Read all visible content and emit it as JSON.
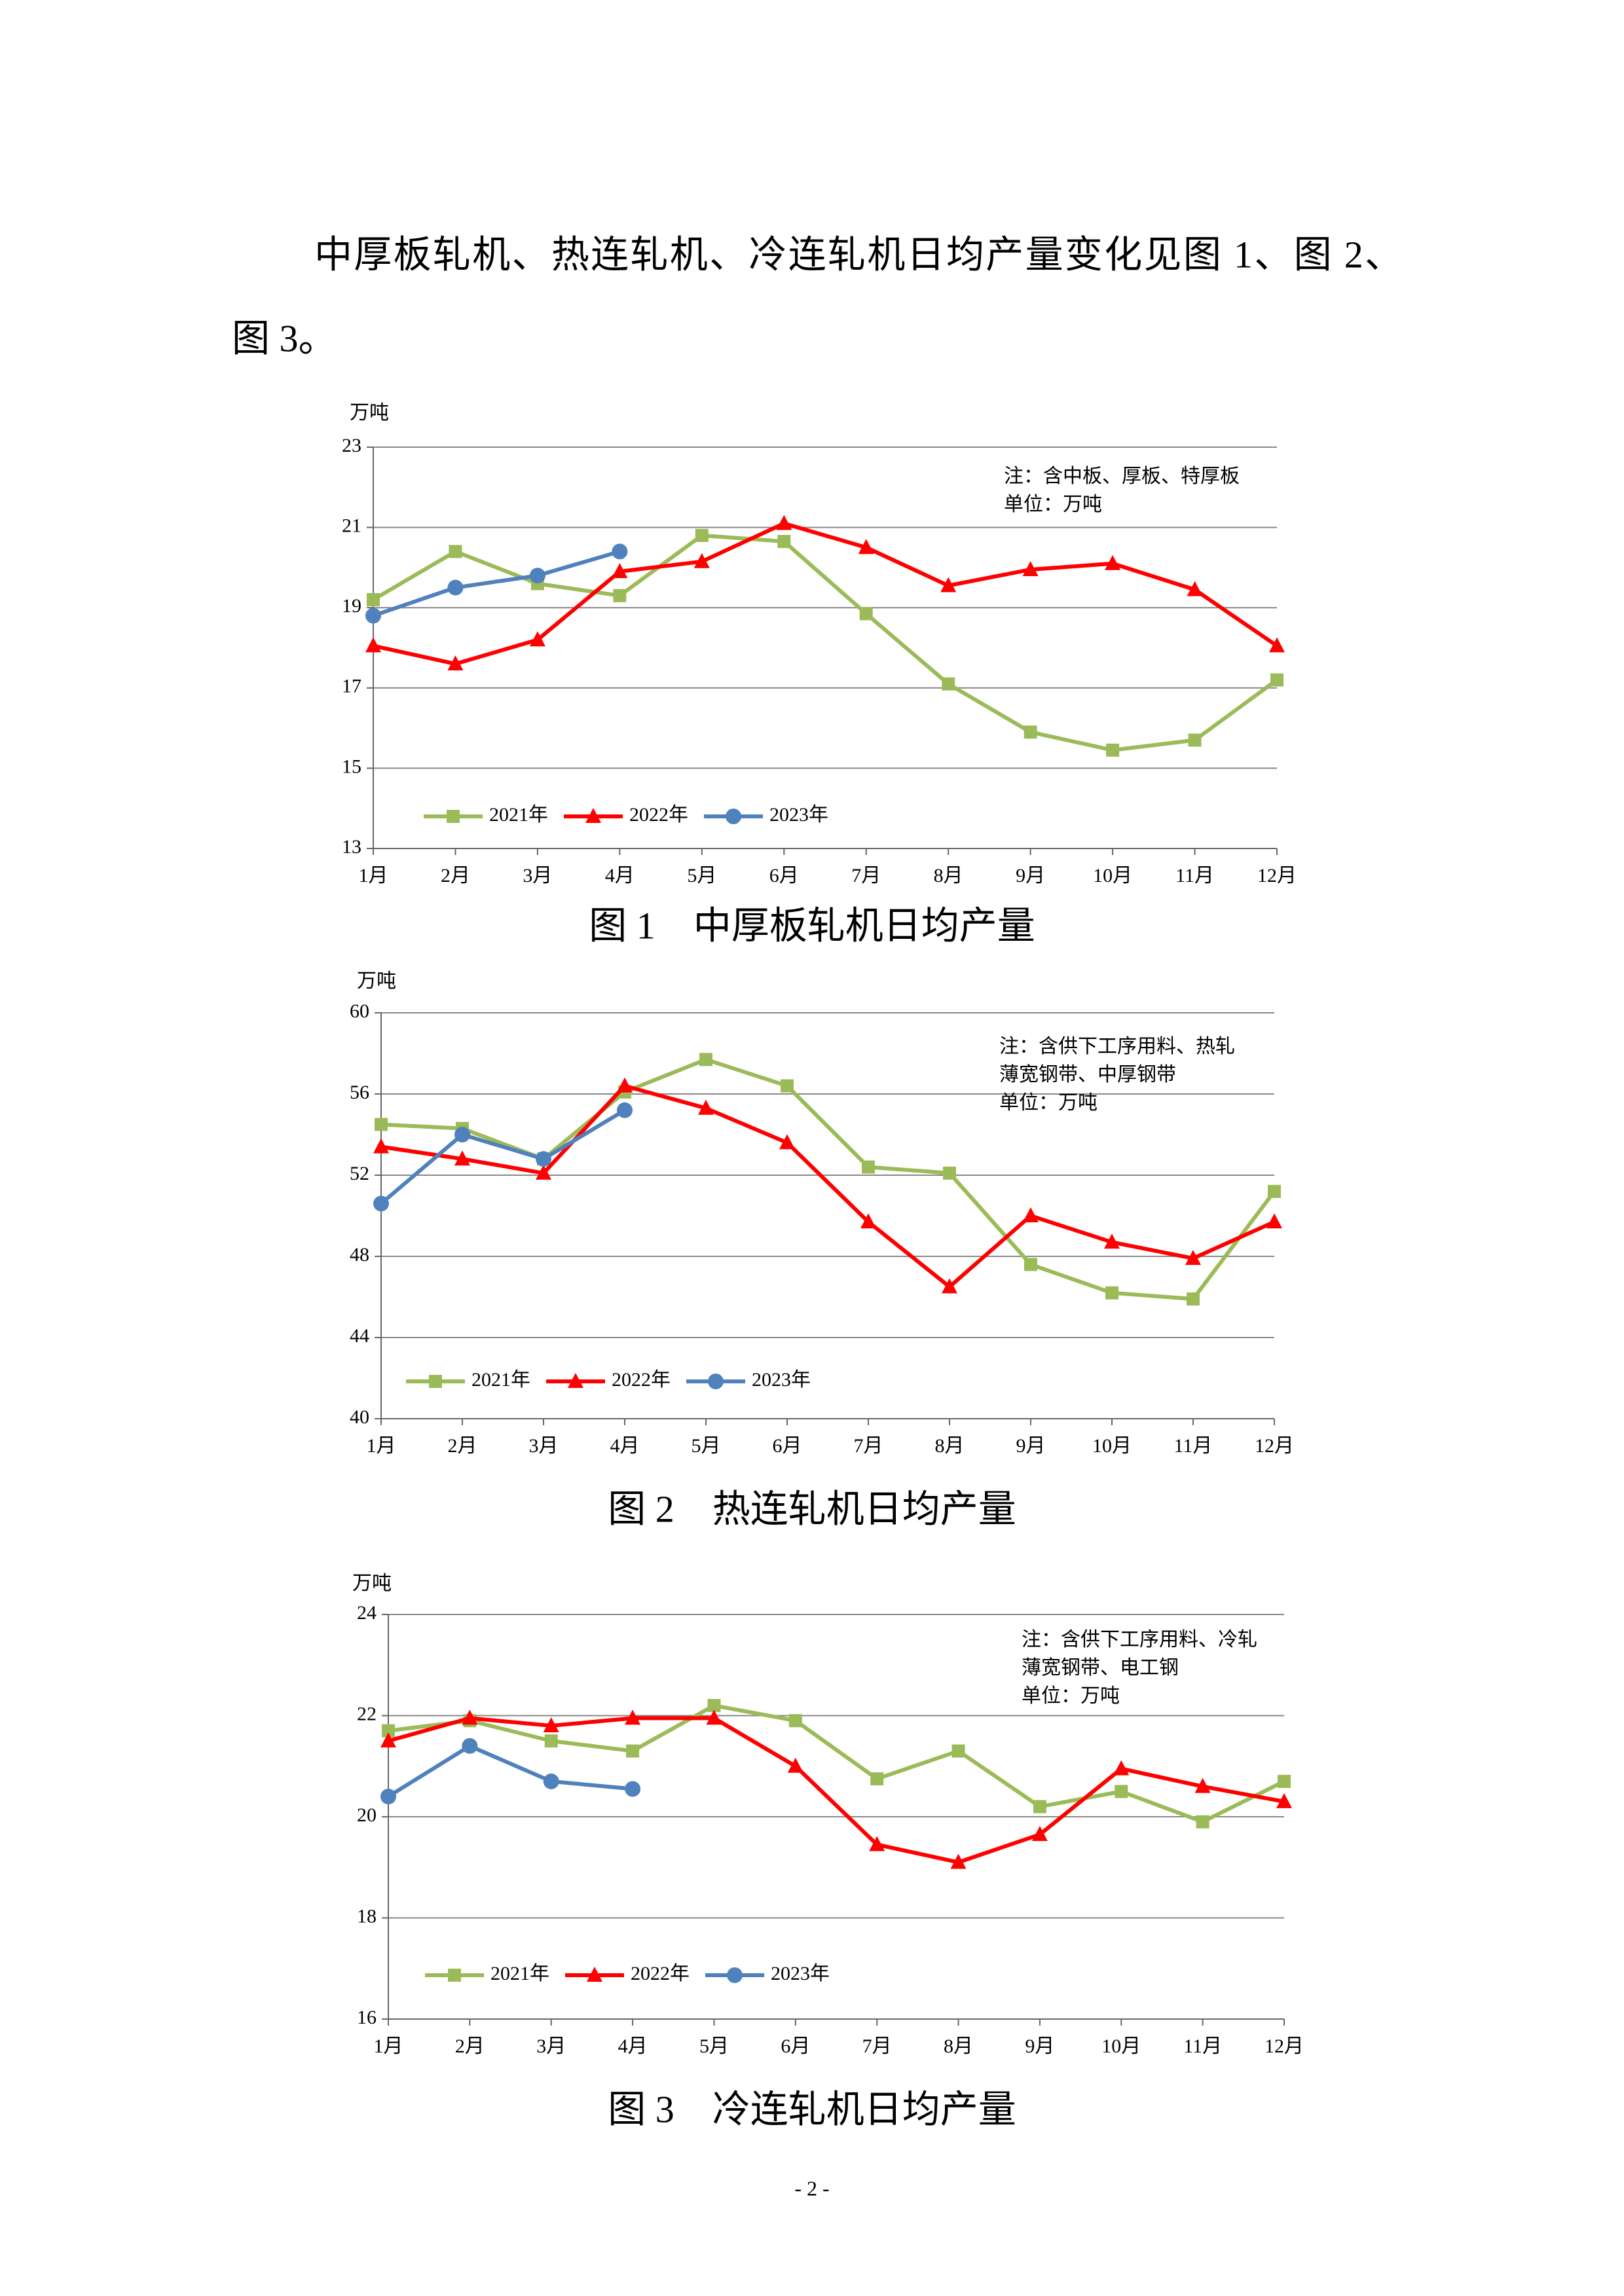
{
  "paragraph": {
    "lines": [
      "中厚板轧机、热连轧机、冷连轧机日均产量变化见图 1、图 2、",
      "图 3。"
    ]
  },
  "chart_data": [
    {
      "type": "line",
      "caption": "图 1　中厚板轧机日均产量",
      "unit_label": "万吨",
      "notes": [
        "注：含中板、厚板、特厚板",
        "单位：万吨"
      ],
      "categories": [
        "1月",
        "2月",
        "3月",
        "4月",
        "5月",
        "6月",
        "7月",
        "8月",
        "9月",
        "10月",
        "11月",
        "12月"
      ],
      "ylim": [
        13,
        23
      ],
      "yticks": [
        13,
        15,
        17,
        19,
        21,
        23
      ],
      "grid": true,
      "series": [
        {
          "name": "2021年",
          "color": "#9bbb59",
          "marker": "square",
          "values": [
            19.2,
            20.4,
            19.6,
            19.3,
            20.8,
            20.65,
            18.85,
            17.1,
            15.9,
            15.45,
            15.7,
            17.2
          ]
        },
        {
          "name": "2022年",
          "color": "#ff0000",
          "marker": "triangle",
          "values": [
            18.05,
            17.6,
            18.2,
            19.9,
            20.15,
            21.1,
            20.5,
            19.55,
            19.95,
            20.1,
            19.45,
            18.05
          ]
        },
        {
          "name": "2023年",
          "color": "#4f81bd",
          "marker": "circle",
          "values": [
            18.8,
            19.5,
            19.8,
            20.4,
            null,
            null,
            null,
            null,
            null,
            null,
            null,
            null
          ]
        }
      ]
    },
    {
      "type": "line",
      "caption": "图 2　热连轧机日均产量",
      "unit_label": "万吨",
      "notes": [
        "注：含供下工序用料、热轧",
        "薄宽钢带、中厚钢带",
        "单位：万吨"
      ],
      "categories": [
        "1月",
        "2月",
        "3月",
        "4月",
        "5月",
        "6月",
        "7月",
        "8月",
        "9月",
        "10月",
        "11月",
        "12月"
      ],
      "ylim": [
        40,
        60
      ],
      "yticks": [
        40,
        44,
        48,
        52,
        56,
        60
      ],
      "grid": true,
      "series": [
        {
          "name": "2021年",
          "color": "#9bbb59",
          "marker": "square",
          "values": [
            54.5,
            54.3,
            52.8,
            56.1,
            57.7,
            56.4,
            52.4,
            52.1,
            47.6,
            46.2,
            45.9,
            51.2
          ]
        },
        {
          "name": "2022年",
          "color": "#ff0000",
          "marker": "triangle",
          "values": [
            53.4,
            52.8,
            52.1,
            56.4,
            55.3,
            53.6,
            49.7,
            46.5,
            50.0,
            48.7,
            47.9,
            49.7
          ]
        },
        {
          "name": "2023年",
          "color": "#4f81bd",
          "marker": "circle",
          "values": [
            50.6,
            54.0,
            52.8,
            55.2,
            null,
            null,
            null,
            null,
            null,
            null,
            null,
            null
          ]
        }
      ]
    },
    {
      "type": "line",
      "caption": "图 3　冷连轧机日均产量",
      "unit_label": "万吨",
      "notes": [
        "注：含供下工序用料、冷轧",
        "薄宽钢带、电工钢",
        "单位：万吨"
      ],
      "categories": [
        "1月",
        "2月",
        "3月",
        "4月",
        "5月",
        "6月",
        "7月",
        "8月",
        "9月",
        "10月",
        "11月",
        "12月"
      ],
      "ylim": [
        16,
        24
      ],
      "yticks": [
        16,
        18,
        20,
        22,
        24
      ],
      "grid": true,
      "series": [
        {
          "name": "2021年",
          "color": "#9bbb59",
          "marker": "square",
          "values": [
            21.7,
            21.9,
            21.5,
            21.3,
            22.2,
            21.9,
            20.75,
            21.3,
            20.2,
            20.5,
            19.9,
            20.7
          ]
        },
        {
          "name": "2022年",
          "color": "#ff0000",
          "marker": "triangle",
          "values": [
            21.5,
            21.95,
            21.8,
            21.95,
            21.95,
            21.0,
            19.45,
            19.1,
            19.65,
            20.95,
            20.6,
            20.3
          ]
        },
        {
          "name": "2023年",
          "color": "#4f81bd",
          "marker": "circle",
          "values": [
            20.4,
            21.4,
            20.7,
            20.55,
            null,
            null,
            null,
            null,
            null,
            null,
            null,
            null
          ]
        }
      ]
    }
  ],
  "page_number": "- 2 -"
}
